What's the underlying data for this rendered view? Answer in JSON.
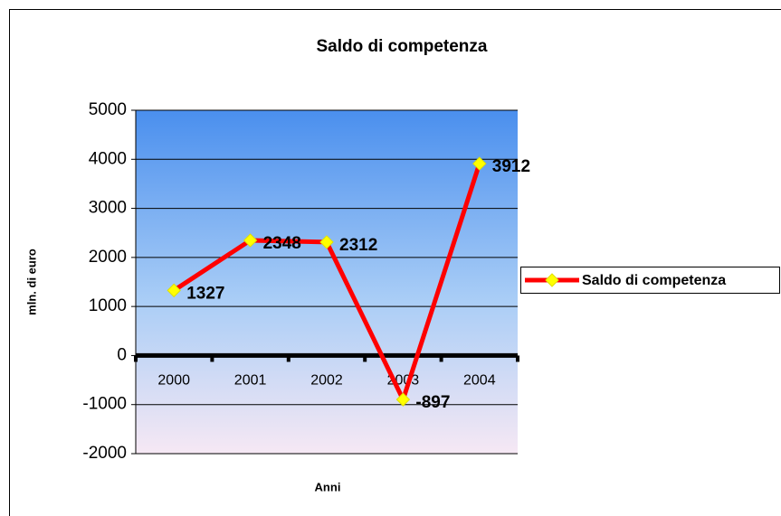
{
  "chart_data": {
    "type": "line",
    "title": "Saldo di competenza",
    "x_label": "Anni",
    "y_label": "mln. di euro",
    "categories": [
      "2000",
      "2001",
      "2002",
      "2003",
      "2004"
    ],
    "series": [
      {
        "name": "Saldo di competenza",
        "color": "#ff0000",
        "marker_color": "#ffff00",
        "values": [
          1327,
          2348,
          2312,
          -897,
          3912
        ]
      }
    ],
    "ylim": [
      -2000,
      5000
    ],
    "yticks": [
      -2000,
      -1000,
      0,
      1000,
      2000,
      3000,
      4000,
      5000
    ],
    "grid": true,
    "legend": "right"
  }
}
